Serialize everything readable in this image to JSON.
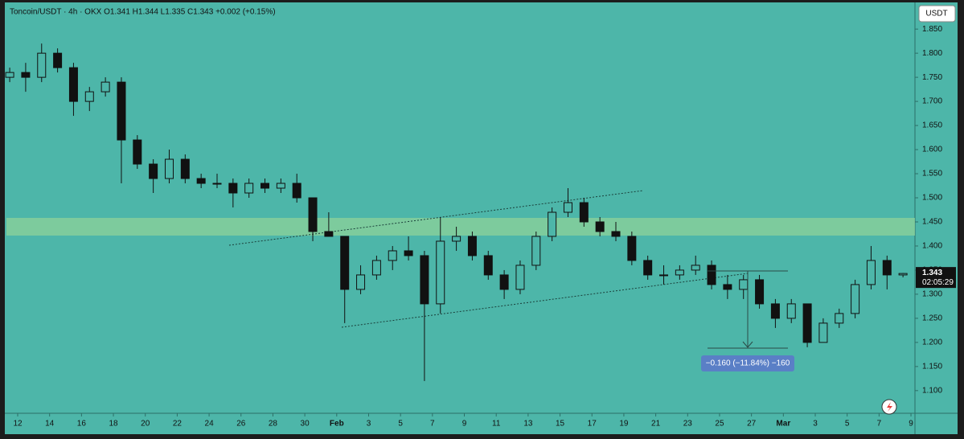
{
  "chart_data": {
    "type": "candlestick",
    "title": "Toncoin/USDT · 4h · OKX  O1.341  H1.344  L1.335  C1.343  +0.002 (+0.15%)",
    "currency": "USDT",
    "last_price": 1.343,
    "countdown": "02:05:29",
    "measure_label": "−0.160 (−11.84%) −160",
    "up_color": "#4db6a9",
    "down_color": "#111111",
    "ohlc": [
      [
        1.75,
        1.77,
        1.74,
        1.76
      ],
      [
        1.76,
        1.78,
        1.72,
        1.75
      ],
      [
        1.75,
        1.82,
        1.74,
        1.8
      ],
      [
        1.8,
        1.81,
        1.76,
        1.77
      ],
      [
        1.77,
        1.78,
        1.67,
        1.7
      ],
      [
        1.7,
        1.73,
        1.68,
        1.72
      ],
      [
        1.72,
        1.75,
        1.71,
        1.74
      ],
      [
        1.74,
        1.75,
        1.53,
        1.62
      ],
      [
        1.62,
        1.63,
        1.56,
        1.57
      ],
      [
        1.57,
        1.58,
        1.51,
        1.54
      ],
      [
        1.54,
        1.6,
        1.53,
        1.58
      ],
      [
        1.58,
        1.59,
        1.53,
        1.54
      ],
      [
        1.54,
        1.55,
        1.52,
        1.53
      ],
      [
        1.53,
        1.55,
        1.52,
        1.53
      ],
      [
        1.53,
        1.54,
        1.48,
        1.51
      ],
      [
        1.51,
        1.54,
        1.5,
        1.53
      ],
      [
        1.53,
        1.54,
        1.51,
        1.52
      ],
      [
        1.52,
        1.54,
        1.51,
        1.53
      ],
      [
        1.53,
        1.55,
        1.49,
        1.5
      ],
      [
        1.5,
        1.5,
        1.41,
        1.43
      ],
      [
        1.43,
        1.47,
        1.42,
        1.42
      ],
      [
        1.42,
        1.42,
        1.24,
        1.31
      ],
      [
        1.31,
        1.36,
        1.3,
        1.34
      ],
      [
        1.34,
        1.38,
        1.33,
        1.37
      ],
      [
        1.37,
        1.4,
        1.35,
        1.39
      ],
      [
        1.39,
        1.42,
        1.37,
        1.38
      ],
      [
        1.38,
        1.39,
        1.12,
        1.28
      ],
      [
        1.28,
        1.46,
        1.26,
        1.41
      ],
      [
        1.41,
        1.44,
        1.39,
        1.42
      ],
      [
        1.42,
        1.43,
        1.37,
        1.38
      ],
      [
        1.38,
        1.39,
        1.33,
        1.34
      ],
      [
        1.34,
        1.35,
        1.29,
        1.31
      ],
      [
        1.31,
        1.37,
        1.3,
        1.36
      ],
      [
        1.36,
        1.43,
        1.35,
        1.42
      ],
      [
        1.42,
        1.48,
        1.41,
        1.47
      ],
      [
        1.47,
        1.52,
        1.46,
        1.49
      ],
      [
        1.49,
        1.5,
        1.44,
        1.45
      ],
      [
        1.45,
        1.46,
        1.42,
        1.43
      ],
      [
        1.43,
        1.45,
        1.41,
        1.42
      ],
      [
        1.42,
        1.43,
        1.36,
        1.37
      ],
      [
        1.37,
        1.38,
        1.33,
        1.34
      ],
      [
        1.34,
        1.36,
        1.32,
        1.34
      ],
      [
        1.34,
        1.36,
        1.33,
        1.35
      ],
      [
        1.35,
        1.38,
        1.34,
        1.36
      ],
      [
        1.36,
        1.37,
        1.31,
        1.32
      ],
      [
        1.32,
        1.34,
        1.29,
        1.31
      ],
      [
        1.31,
        1.34,
        1.29,
        1.33
      ],
      [
        1.33,
        1.34,
        1.27,
        1.28
      ],
      [
        1.28,
        1.29,
        1.23,
        1.25
      ],
      [
        1.25,
        1.29,
        1.24,
        1.28
      ],
      [
        1.28,
        1.28,
        1.19,
        1.2
      ],
      [
        1.2,
        1.25,
        1.2,
        1.24
      ],
      [
        1.24,
        1.27,
        1.23,
        1.26
      ],
      [
        1.26,
        1.33,
        1.25,
        1.32
      ],
      [
        1.32,
        1.4,
        1.31,
        1.37
      ],
      [
        1.37,
        1.38,
        1.31,
        1.34
      ],
      [
        1.34,
        1.344,
        1.335,
        1.343
      ]
    ],
    "xlim": [
      -0.109,
      57.25
    ],
    "xticks": [
      {
        "value": 1,
        "label": "12"
      },
      {
        "value": 3,
        "label": "14"
      },
      {
        "value": 5,
        "label": "16"
      },
      {
        "value": 7,
        "label": "18"
      },
      {
        "value": 9,
        "label": "20"
      },
      {
        "value": 11,
        "label": "22"
      },
      {
        "value": 13,
        "label": "24"
      },
      {
        "value": 15,
        "label": "26"
      },
      {
        "value": 17,
        "label": "28"
      },
      {
        "value": 19,
        "label": "30"
      },
      {
        "value": 21,
        "label": "Feb"
      },
      {
        "value": 23,
        "label": "3"
      },
      {
        "value": 25,
        "label": "5"
      },
      {
        "value": 27,
        "label": "7"
      },
      {
        "value": 29,
        "label": "9"
      },
      {
        "value": 31,
        "label": "11"
      },
      {
        "value": 33,
        "label": "13"
      },
      {
        "value": 35,
        "label": "15"
      },
      {
        "value": 37,
        "label": "17"
      },
      {
        "value": 39,
        "label": "19"
      },
      {
        "value": 41,
        "label": "21"
      },
      {
        "value": 43,
        "label": "23"
      },
      {
        "value": 45,
        "label": "25"
      },
      {
        "value": 47,
        "label": "27"
      },
      {
        "value": 49,
        "label": "Mar"
      },
      {
        "value": 51,
        "label": "3"
      },
      {
        "value": 53,
        "label": "5"
      },
      {
        "value": 55,
        "label": "7"
      },
      {
        "value": 57,
        "label": "9"
      }
    ],
    "ylim": [
      1.053,
      1.902
    ],
    "yticks": [
      {
        "value": 1.1,
        "label": "1.100"
      },
      {
        "value": 1.15,
        "label": "1.150"
      },
      {
        "value": 1.2,
        "label": "1.200"
      },
      {
        "value": 1.25,
        "label": "1.250"
      },
      {
        "value": 1.3,
        "label": "1.300"
      },
      {
        "value": 1.35,
        "label": "1.350"
      },
      {
        "value": 1.4,
        "label": "1.400"
      },
      {
        "value": 1.45,
        "label": "1.450"
      },
      {
        "value": 1.5,
        "label": "1.500"
      },
      {
        "value": 1.55,
        "label": "1.550"
      },
      {
        "value": 1.6,
        "label": "1.600"
      },
      {
        "value": 1.65,
        "label": "1.650"
      },
      {
        "value": 1.7,
        "label": "1.700"
      },
      {
        "value": 1.75,
        "label": "1.750"
      },
      {
        "value": 1.8,
        "label": "1.800"
      },
      {
        "value": 1.85,
        "label": "1.850"
      }
    ]
  }
}
